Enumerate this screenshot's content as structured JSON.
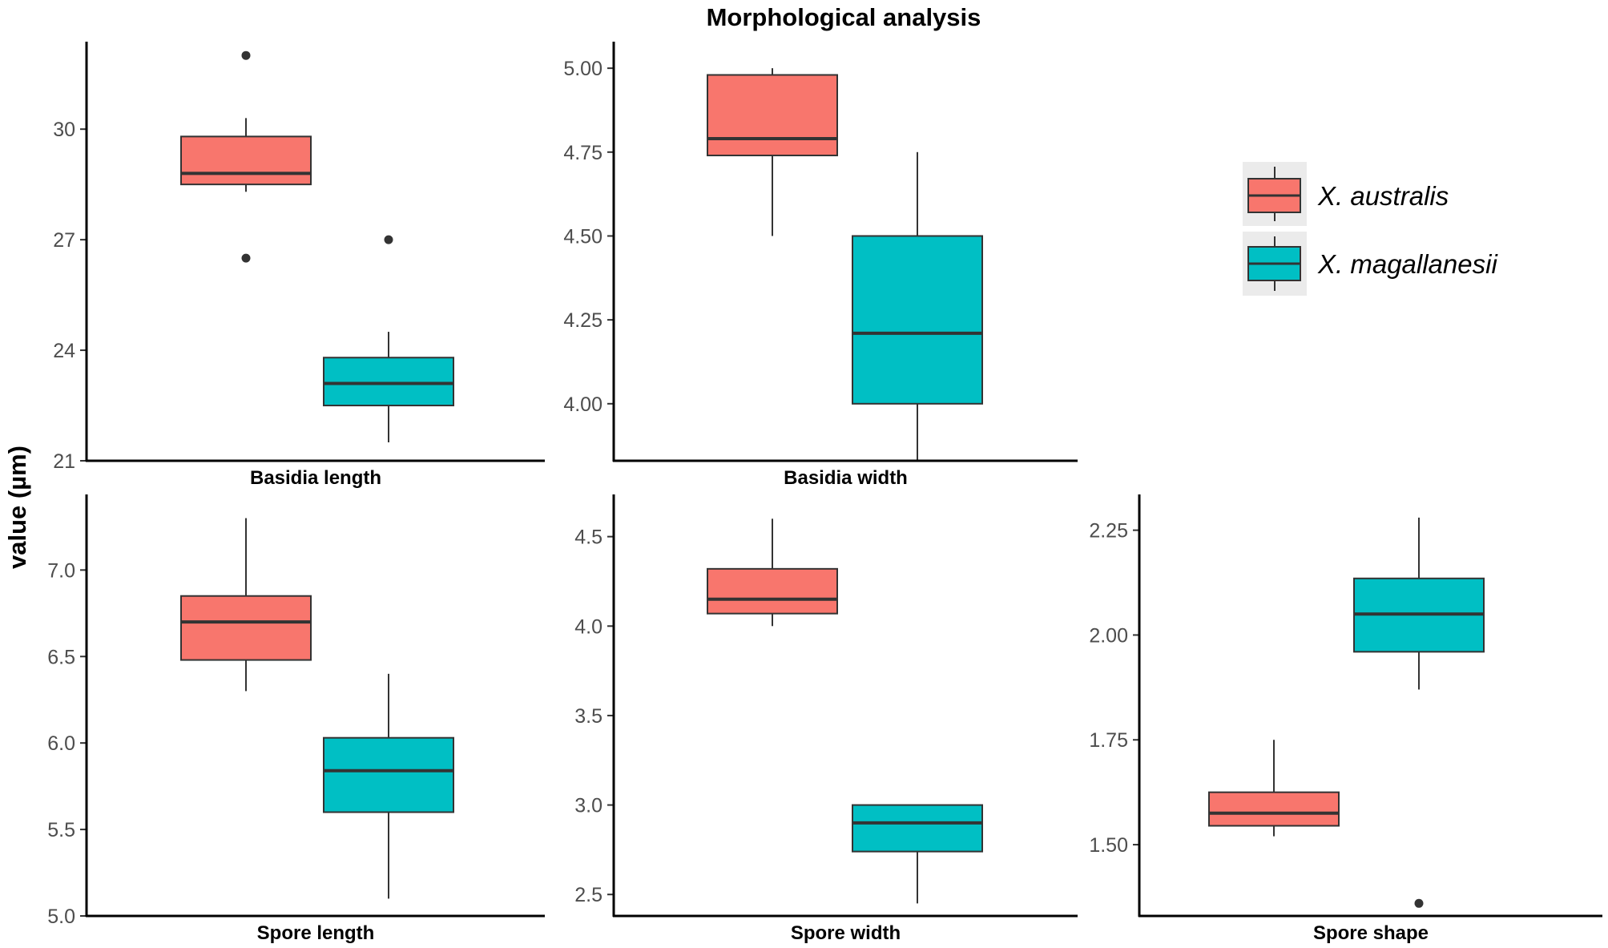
{
  "figure": {
    "title": "Morphological analysis",
    "ylabel": "value (µm)"
  },
  "legend": {
    "position": "top-right",
    "items": [
      {
        "label": "X. australis",
        "color": "#F8766D"
      },
      {
        "label": "X. magallanesii",
        "color": "#00BFC4"
      }
    ]
  },
  "chart_data": [
    {
      "type": "boxplot",
      "title": "",
      "xlabel": "Basidia length",
      "ylabel": "value (µm)",
      "ylim": [
        21,
        32.2
      ],
      "yticks": [
        21,
        24,
        27,
        30
      ],
      "ytick_labels": [
        "21",
        "24",
        "27",
        "30"
      ],
      "series": [
        {
          "name": "X. australis",
          "color": "#F8766D",
          "whisker_low": 28.3,
          "q1": 28.5,
          "median": 28.8,
          "q3": 29.8,
          "whisker_high": 30.3,
          "outliers": [
            32.0,
            26.5
          ]
        },
        {
          "name": "X. magallanesii",
          "color": "#00BFC4",
          "whisker_low": 21.5,
          "q1": 22.5,
          "median": 23.1,
          "q3": 23.8,
          "whisker_high": 24.5,
          "outliers": [
            27.0
          ]
        }
      ]
    },
    {
      "type": "boxplot",
      "title": "",
      "xlabel": "Basidia width",
      "ylabel": "value (µm)",
      "ylim": [
        3.83,
        5.06
      ],
      "yticks": [
        4.0,
        4.25,
        4.5,
        4.75,
        5.0
      ],
      "ytick_labels": [
        "4.00",
        "4.25",
        "4.50",
        "4.75",
        "5.00"
      ],
      "series": [
        {
          "name": "X. australis",
          "color": "#F8766D",
          "whisker_low": 4.5,
          "q1": 4.74,
          "median": 4.79,
          "q3": 4.98,
          "whisker_high": 5.0,
          "outliers": []
        },
        {
          "name": "X. magallanesii",
          "color": "#00BFC4",
          "whisker_low": 3.83,
          "q1": 4.0,
          "median": 4.21,
          "q3": 4.5,
          "whisker_high": 4.75,
          "outliers": []
        }
      ]
    },
    {
      "type": "boxplot",
      "title": "",
      "xlabel": "Spore length",
      "ylabel": "value (µm)",
      "ylim": [
        5.0,
        7.4
      ],
      "yticks": [
        5.0,
        5.5,
        6.0,
        6.5,
        7.0
      ],
      "ytick_labels": [
        "5.0",
        "5.5",
        "6.0",
        "6.5",
        "7.0"
      ],
      "series": [
        {
          "name": "X. australis",
          "color": "#F8766D",
          "whisker_low": 6.3,
          "q1": 6.48,
          "median": 6.7,
          "q3": 6.85,
          "whisker_high": 7.3,
          "outliers": []
        },
        {
          "name": "X. magallanesii",
          "color": "#00BFC4",
          "whisker_low": 5.1,
          "q1": 5.6,
          "median": 5.84,
          "q3": 6.03,
          "whisker_high": 6.4,
          "outliers": []
        }
      ]
    },
    {
      "type": "boxplot",
      "title": "",
      "xlabel": "Spore width",
      "ylabel": "value (µm)",
      "ylim": [
        2.38,
        4.7
      ],
      "yticks": [
        2.5,
        3.0,
        3.5,
        4.0,
        4.5
      ],
      "ytick_labels": [
        "2.5",
        "3.0",
        "3.5",
        "4.0",
        "4.5"
      ],
      "series": [
        {
          "name": "X. australis",
          "color": "#F8766D",
          "whisker_low": 4.0,
          "q1": 4.07,
          "median": 4.15,
          "q3": 4.32,
          "whisker_high": 4.6,
          "outliers": []
        },
        {
          "name": "X. magallanesii",
          "color": "#00BFC4",
          "whisker_low": 2.45,
          "q1": 2.74,
          "median": 2.9,
          "q3": 3.0,
          "whisker_high": 3.0,
          "outliers": []
        }
      ]
    },
    {
      "type": "boxplot",
      "title": "",
      "xlabel": "Spore shape",
      "ylabel": "value (µm)",
      "ylim": [
        1.33,
        2.32
      ],
      "yticks": [
        1.5,
        1.75,
        2.0,
        2.25
      ],
      "ytick_labels": [
        "1.50",
        "1.75",
        "2.00",
        "2.25"
      ],
      "series": [
        {
          "name": "X. australis",
          "color": "#F8766D",
          "whisker_low": 1.52,
          "q1": 1.545,
          "median": 1.575,
          "q3": 1.625,
          "whisker_high": 1.75,
          "outliers": []
        },
        {
          "name": "X. magallanesii",
          "color": "#00BFC4",
          "whisker_low": 1.87,
          "q1": 1.96,
          "median": 2.05,
          "q3": 2.135,
          "whisker_high": 2.28,
          "outliers": [
            1.36
          ]
        }
      ]
    }
  ]
}
